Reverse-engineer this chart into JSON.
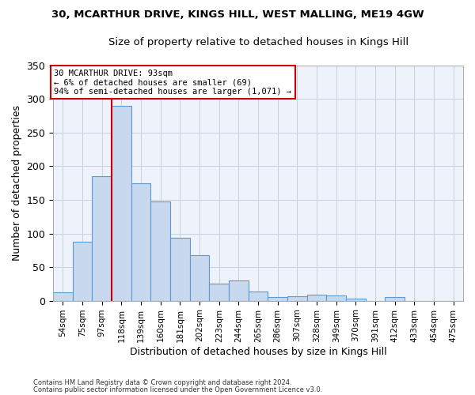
{
  "title1": "30, MCARTHUR DRIVE, KINGS HILL, WEST MALLING, ME19 4GW",
  "title2": "Size of property relative to detached houses in Kings Hill",
  "xlabel": "Distribution of detached houses by size in Kings Hill",
  "ylabel": "Number of detached properties",
  "bin_labels": [
    "54sqm",
    "75sqm",
    "97sqm",
    "118sqm",
    "139sqm",
    "160sqm",
    "181sqm",
    "202sqm",
    "223sqm",
    "244sqm",
    "265sqm",
    "286sqm",
    "307sqm",
    "328sqm",
    "349sqm",
    "370sqm",
    "391sqm",
    "412sqm",
    "433sqm",
    "454sqm",
    "475sqm"
  ],
  "bar_heights": [
    13,
    88,
    185,
    290,
    175,
    148,
    93,
    68,
    25,
    30,
    14,
    6,
    7,
    9,
    8,
    3,
    0,
    6,
    0,
    0,
    0
  ],
  "bar_color": "#c8d8ef",
  "bar_edge_color": "#5b9bd5",
  "vline_color": "#cc0000",
  "annotation_text": "30 MCARTHUR DRIVE: 93sqm\n← 6% of detached houses are smaller (69)\n94% of semi-detached houses are larger (1,071) →",
  "annotation_box_color": "#ffffff",
  "annotation_box_edge_color": "#cc0000",
  "ylim": [
    0,
    350
  ],
  "yticks": [
    0,
    50,
    100,
    150,
    200,
    250,
    300,
    350
  ],
  "bg_color": "#eef2fa",
  "grid_color": "#c8cfe0",
  "footer1": "Contains HM Land Registry data © Crown copyright and database right 2024.",
  "footer2": "Contains public sector information licensed under the Open Government Licence v3.0."
}
